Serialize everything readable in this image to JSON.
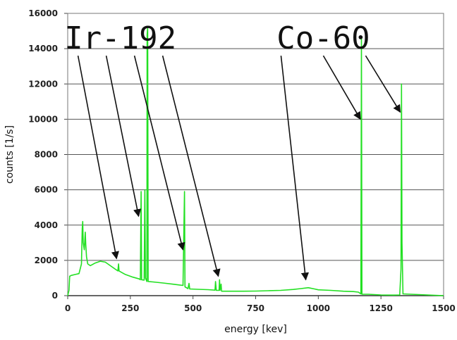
{
  "chart_data": {
    "type": "line",
    "xlabel": "energy [kev]",
    "ylabel": "counts [1/s]",
    "xlim": [
      0,
      1500
    ],
    "ylim": [
      0,
      16000
    ],
    "x_ticks": [
      "0",
      "250",
      "500",
      "750",
      "1000",
      "1250",
      "1500"
    ],
    "y_ticks": [
      "0",
      "2000",
      "4000",
      "6000",
      "8000",
      "10000",
      "12000",
      "14000",
      "16000"
    ],
    "grid": "horizontal",
    "line_color": "#22e022",
    "spectrum": [
      [
        0,
        0
      ],
      [
        5,
        300
      ],
      [
        8,
        1100
      ],
      [
        15,
        1150
      ],
      [
        30,
        1200
      ],
      [
        45,
        1250
      ],
      [
        55,
        1800
      ],
      [
        58,
        3800
      ],
      [
        60,
        4200
      ],
      [
        62,
        3000
      ],
      [
        66,
        2600
      ],
      [
        70,
        3600
      ],
      [
        72,
        2900
      ],
      [
        75,
        2200
      ],
      [
        80,
        1800
      ],
      [
        90,
        1700
      ],
      [
        110,
        1850
      ],
      [
        130,
        1950
      ],
      [
        150,
        1900
      ],
      [
        170,
        1700
      ],
      [
        190,
        1500
      ],
      [
        200,
        1400
      ],
      [
        203,
        1800
      ],
      [
        205,
        1400
      ],
      [
        230,
        1200
      ],
      [
        260,
        1050
      ],
      [
        285,
        950
      ],
      [
        290,
        900
      ],
      [
        293,
        5900
      ],
      [
        295,
        900
      ],
      [
        305,
        880
      ],
      [
        308,
        6000
      ],
      [
        310,
        1000
      ],
      [
        316,
        800
      ],
      [
        317,
        14800
      ],
      [
        319,
        15200
      ],
      [
        321,
        800
      ],
      [
        340,
        780
      ],
      [
        380,
        720
      ],
      [
        420,
        650
      ],
      [
        460,
        580
      ],
      [
        466,
        5900
      ],
      [
        468,
        500
      ],
      [
        480,
        400
      ],
      [
        484,
        700
      ],
      [
        487,
        380
      ],
      [
        520,
        360
      ],
      [
        560,
        340
      ],
      [
        588,
        310
      ],
      [
        590,
        800
      ],
      [
        593,
        300
      ],
      [
        604,
        300
      ],
      [
        606,
        900
      ],
      [
        608,
        300
      ],
      [
        612,
        650
      ],
      [
        614,
        250
      ],
      [
        640,
        250
      ],
      [
        700,
        250
      ],
      [
        750,
        260
      ],
      [
        800,
        280
      ],
      [
        850,
        300
      ],
      [
        900,
        350
      ],
      [
        930,
        400
      ],
      [
        960,
        450
      ],
      [
        985,
        380
      ],
      [
        1000,
        330
      ],
      [
        1050,
        300
      ],
      [
        1100,
        250
      ],
      [
        1140,
        230
      ],
      [
        1160,
        200
      ],
      [
        1170,
        100
      ],
      [
        1172,
        14600
      ],
      [
        1174,
        80
      ],
      [
        1200,
        80
      ],
      [
        1250,
        40
      ],
      [
        1300,
        30
      ],
      [
        1325,
        40
      ],
      [
        1330,
        1500
      ],
      [
        1332,
        12000
      ],
      [
        1334,
        3000
      ],
      [
        1338,
        100
      ],
      [
        1500,
        0
      ]
    ],
    "annotations": [
      {
        "text": "Ir-192",
        "label_anchor": [
          210,
          14000
        ],
        "targets": [
          [
            195,
            2100
          ],
          [
            283,
            4500
          ],
          [
            460,
            2600
          ],
          [
            601,
            1100
          ]
        ]
      },
      {
        "text": "Co-60",
        "label_anchor": [
          1020,
          14000
        ],
        "targets": [
          [
            950,
            900
          ],
          [
            1168,
            10000
          ],
          [
            1327,
            10400
          ]
        ]
      }
    ]
  }
}
